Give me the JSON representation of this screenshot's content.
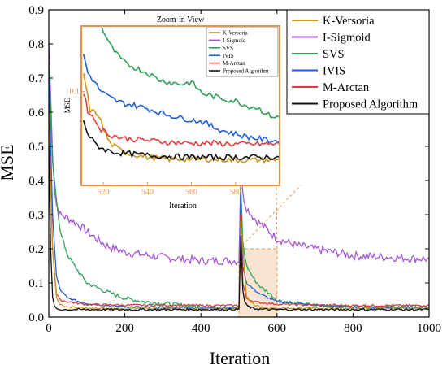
{
  "chart_data": {
    "type": "line",
    "xlabel": "Iteration",
    "ylabel": "MSE",
    "xlim": [
      0,
      1000
    ],
    "ylim": [
      0,
      0.9
    ],
    "xticks": [
      0,
      200,
      400,
      600,
      800,
      1000
    ],
    "yticks": [
      0.0,
      0.1,
      0.2,
      0.3,
      0.4,
      0.5,
      0.6,
      0.7,
      0.8,
      0.9
    ],
    "grid": false,
    "legend_position": "top-right",
    "colors": {
      "K-Versoria": "#c8961e",
      "I-Sigmoid": "#a455d4",
      "SVS": "#2ea05a",
      "IVIS": "#1f5fd8",
      "M-Arctan": "#e03c3c",
      "Proposed Algorithm": "#111111",
      "highlight": "#e8924a"
    },
    "series": [
      {
        "name": "K-Versoria",
        "x": [
          0,
          10,
          20,
          30,
          50,
          100,
          200,
          400,
          500,
          505,
          520,
          540,
          560,
          580,
          600,
          700,
          1000
        ],
        "y": [
          0.55,
          0.2,
          0.06,
          0.035,
          0.03,
          0.025,
          0.025,
          0.025,
          0.025,
          0.28,
          0.06,
          0.035,
          0.028,
          0.027,
          0.026,
          0.026,
          0.026
        ]
      },
      {
        "name": "I-Sigmoid",
        "x": [
          0,
          5,
          10,
          15,
          20,
          30,
          50,
          80,
          100,
          150,
          200,
          300,
          400,
          500,
          505,
          510,
          520,
          540,
          560,
          580,
          600,
          650,
          700,
          800,
          900,
          1000
        ],
        "y": [
          0.8,
          0.65,
          0.48,
          0.38,
          0.33,
          0.3,
          0.29,
          0.27,
          0.25,
          0.21,
          0.19,
          0.175,
          0.165,
          0.165,
          0.43,
          0.36,
          0.32,
          0.29,
          0.27,
          0.25,
          0.23,
          0.21,
          0.2,
          0.18,
          0.175,
          0.17
        ]
      },
      {
        "name": "SVS",
        "x": [
          0,
          10,
          20,
          30,
          50,
          80,
          100,
          150,
          200,
          250,
          300,
          400,
          500,
          505,
          510,
          520,
          540,
          560,
          580,
          600,
          650,
          700,
          800,
          1000
        ],
        "y": [
          0.75,
          0.45,
          0.35,
          0.25,
          0.18,
          0.13,
          0.1,
          0.075,
          0.055,
          0.045,
          0.04,
          0.03,
          0.028,
          0.38,
          0.22,
          0.15,
          0.11,
          0.085,
          0.07,
          0.05,
          0.04,
          0.035,
          0.03,
          0.028
        ]
      },
      {
        "name": "IVIS",
        "x": [
          0,
          10,
          20,
          30,
          50,
          80,
          100,
          150,
          200,
          300,
          400,
          500,
          505,
          510,
          520,
          540,
          560,
          580,
          600,
          650,
          700,
          800,
          1000
        ],
        "y": [
          0.7,
          0.3,
          0.12,
          0.08,
          0.055,
          0.045,
          0.04,
          0.035,
          0.03,
          0.028,
          0.027,
          0.026,
          0.36,
          0.15,
          0.1,
          0.08,
          0.065,
          0.055,
          0.045,
          0.04,
          0.035,
          0.03,
          0.028
        ]
      },
      {
        "name": "M-Arctan",
        "x": [
          0,
          10,
          20,
          30,
          50,
          80,
          100,
          200,
          300,
          400,
          500,
          505,
          510,
          520,
          540,
          560,
          580,
          600,
          700,
          800,
          1000
        ],
        "y": [
          0.6,
          0.2,
          0.07,
          0.05,
          0.045,
          0.04,
          0.037,
          0.035,
          0.035,
          0.034,
          0.034,
          0.3,
          0.1,
          0.055,
          0.045,
          0.042,
          0.04,
          0.038,
          0.035,
          0.034,
          0.034
        ]
      },
      {
        "name": "Proposed Algorithm",
        "x": [
          0,
          5,
          10,
          15,
          20,
          30,
          50,
          100,
          200,
          400,
          500,
          505,
          510,
          515,
          520,
          530,
          540,
          560,
          580,
          600,
          700,
          1000
        ],
        "y": [
          0.5,
          0.2,
          0.06,
          0.03,
          0.025,
          0.022,
          0.022,
          0.022,
          0.022,
          0.022,
          0.022,
          0.24,
          0.08,
          0.045,
          0.035,
          0.028,
          0.025,
          0.023,
          0.022,
          0.022,
          0.022,
          0.022
        ]
      }
    ],
    "highlight_box": {
      "x": [
        500,
        600
      ],
      "y": [
        0,
        0.2
      ]
    },
    "inset": {
      "title": "Zoom-in View",
      "xlabel": "Iteration",
      "ylabel": "MSE",
      "xlim": [
        510,
        600
      ],
      "ylim": [
        0.0,
        0.17
      ],
      "xticks": [
        520,
        540,
        560,
        580
      ],
      "ytick_labels": [
        {
          "value": 0.1,
          "label": "0.1"
        }
      ],
      "legend_position": "top-right",
      "series": [
        {
          "name": "K-Versoria",
          "x": [
            511,
            514,
            518,
            520,
            523,
            526,
            530,
            540,
            550,
            560,
            570,
            580,
            590,
            600
          ],
          "y": [
            0.12,
            0.08,
            0.075,
            0.06,
            0.045,
            0.04,
            0.035,
            0.03,
            0.028,
            0.028,
            0.028,
            0.027,
            0.027,
            0.027
          ]
        },
        {
          "name": "I-Sigmoid",
          "x": [],
          "y": []
        },
        {
          "name": "SVS",
          "x": [
            518,
            520,
            523,
            526,
            530,
            535,
            540,
            545,
            550,
            555,
            560,
            565,
            570,
            575,
            580,
            585,
            590,
            595,
            600
          ],
          "y": [
            0.175,
            0.165,
            0.15,
            0.14,
            0.13,
            0.125,
            0.12,
            0.113,
            0.11,
            0.108,
            0.11,
            0.098,
            0.095,
            0.092,
            0.09,
            0.085,
            0.083,
            0.075,
            0.072
          ]
        },
        {
          "name": "IVIS",
          "x": [
            511,
            513,
            516,
            519,
            522,
            526,
            530,
            535,
            540,
            545,
            550,
            555,
            560,
            565,
            570,
            575,
            580,
            585,
            590,
            595,
            600
          ],
          "y": [
            0.14,
            0.12,
            0.11,
            0.1,
            0.095,
            0.09,
            0.087,
            0.085,
            0.082,
            0.078,
            0.075,
            0.072,
            0.07,
            0.068,
            0.062,
            0.058,
            0.055,
            0.052,
            0.05,
            0.048,
            0.047
          ]
        },
        {
          "name": "M-Arctan",
          "x": [
            511,
            513,
            516,
            519,
            522,
            526,
            530,
            540,
            550,
            560,
            570,
            580,
            590,
            600
          ],
          "y": [
            0.1,
            0.08,
            0.07,
            0.06,
            0.055,
            0.052,
            0.05,
            0.048,
            0.046,
            0.045,
            0.045,
            0.044,
            0.044,
            0.044
          ]
        },
        {
          "name": "Proposed Algorithm",
          "x": [
            511,
            513,
            516,
            519,
            522,
            526,
            530,
            540,
            550,
            560,
            570,
            580,
            590,
            600
          ],
          "y": [
            0.07,
            0.055,
            0.045,
            0.04,
            0.037,
            0.035,
            0.034,
            0.032,
            0.031,
            0.03,
            0.03,
            0.03,
            0.03,
            0.03
          ]
        }
      ]
    }
  }
}
